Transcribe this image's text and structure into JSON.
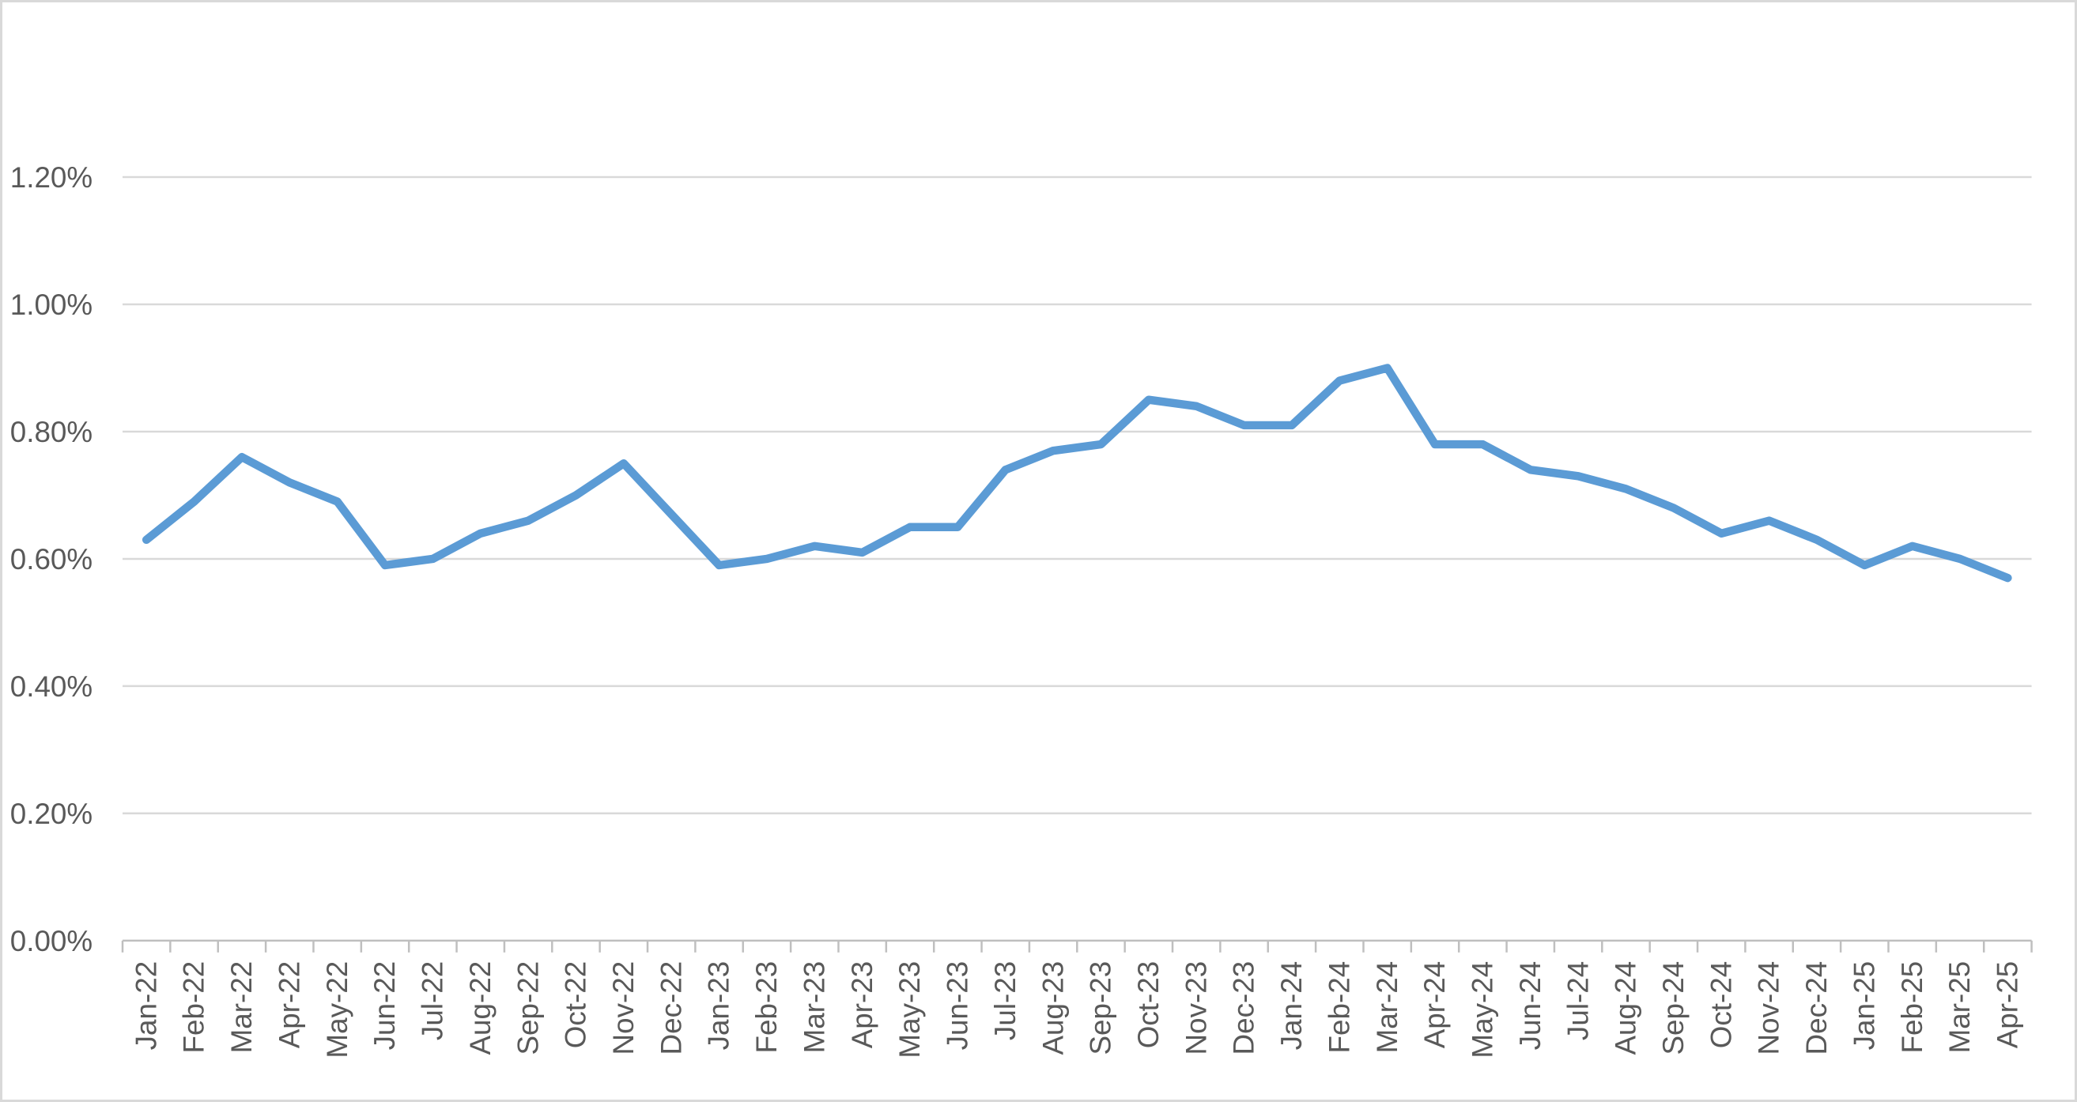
{
  "chart_data": {
    "type": "line",
    "title": "",
    "xlabel": "",
    "ylabel": "",
    "unit": "%",
    "legend": "none",
    "grid": true,
    "categories": [
      "Jan-22",
      "Feb-22",
      "Mar-22",
      "Apr-22",
      "May-22",
      "Jun-22",
      "Jul-22",
      "Aug-22",
      "Sep-22",
      "Oct-22",
      "Nov-22",
      "Dec-22",
      "Jan-23",
      "Feb-23",
      "Mar-23",
      "Apr-23",
      "May-23",
      "Jun-23",
      "Jul-23",
      "Aug-23",
      "Sep-23",
      "Oct-23",
      "Nov-23",
      "Dec-23",
      "Jan-24",
      "Feb-24",
      "Mar-24",
      "Apr-24",
      "May-24",
      "Jun-24",
      "Jul-24",
      "Aug-24",
      "Sep-24",
      "Oct-24",
      "Nov-24",
      "Dec-24",
      "Jan-25",
      "Feb-25",
      "Mar-25",
      "Apr-25"
    ],
    "series": [
      {
        "name": "",
        "values": [
          0.63,
          0.69,
          0.76,
          0.72,
          0.69,
          0.59,
          0.6,
          0.64,
          0.66,
          0.7,
          0.75,
          0.67,
          0.59,
          0.6,
          0.62,
          0.61,
          0.65,
          0.65,
          0.74,
          0.77,
          0.78,
          0.85,
          0.84,
          0.81,
          0.81,
          0.88,
          0.9,
          0.78,
          0.78,
          0.74,
          0.73,
          0.71,
          0.68,
          0.64,
          0.66,
          0.63,
          0.59,
          0.62,
          0.6,
          0.57
        ]
      }
    ],
    "y_axis": {
      "min": 0,
      "max": 1.2,
      "step": 0.2,
      "tick_labels": [
        "0.00%",
        "0.20%",
        "0.40%",
        "0.60%",
        "0.80%",
        "1.00%",
        "1.20%"
      ]
    },
    "colors": {
      "series_line": "#5B9BD5",
      "gridline": "#D9D9D9",
      "axis_line": "#BFBFBF",
      "tick_mark": "#BFBFBF",
      "tick_label": "#595959",
      "background": "#FFFFFF",
      "canvas_border": "#D9D9D9"
    }
  }
}
